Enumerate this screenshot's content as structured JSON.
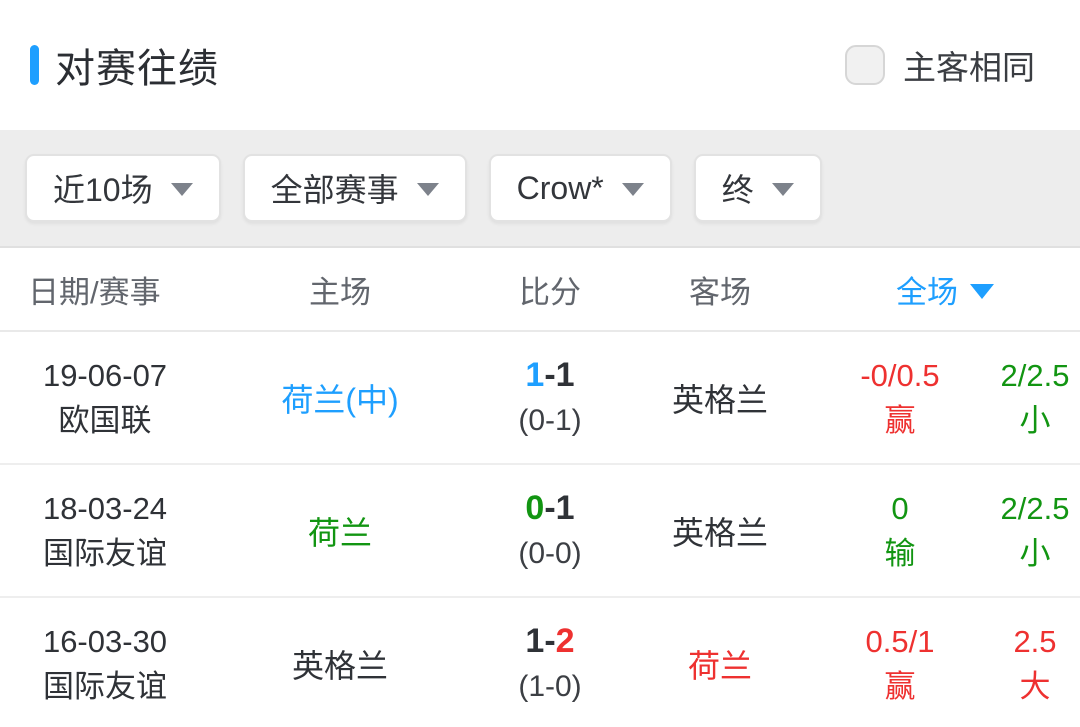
{
  "colors": {
    "accent_blue": "#1e9fff",
    "win_red": "#ee3130",
    "loss_green": "#129512",
    "text_dark": "#2f3237"
  },
  "header": {
    "title": "对赛往绩",
    "same_home_away_label": "主客相同",
    "checkbox_checked": false
  },
  "filters": [
    {
      "label": "近10场"
    },
    {
      "label": "全部赛事"
    },
    {
      "label": "Crow*"
    },
    {
      "label": "终"
    }
  ],
  "columns": {
    "date": "日期/赛事",
    "home": "主场",
    "score": "比分",
    "away": "客场",
    "full": "全场"
  },
  "score_separator": "-",
  "rows": [
    {
      "date": "19-06-07",
      "competition": "欧国联",
      "home": "荷兰(中)",
      "home_color": "#1e9fff",
      "score_home": "1",
      "score_home_color": "#1e9fff",
      "score_away": "1",
      "score_away_color": "#2f3237",
      "half_score": "(0-1)",
      "away": "英格兰",
      "away_color": "#2f3237",
      "handicap": "-0/0.5",
      "handicap_result": "赢",
      "handicap_color": "#ee3130",
      "over_under": "2/2.5",
      "over_under_result": "小",
      "over_under_color": "#129512"
    },
    {
      "date": "18-03-24",
      "competition": "国际友谊",
      "home": "荷兰",
      "home_color": "#129512",
      "score_home": "0",
      "score_home_color": "#129512",
      "score_away": "1",
      "score_away_color": "#2f3237",
      "half_score": "(0-0)",
      "away": "英格兰",
      "away_color": "#2f3237",
      "handicap": "0",
      "handicap_result": "输",
      "handicap_color": "#129512",
      "over_under": "2/2.5",
      "over_under_result": "小",
      "over_under_color": "#129512"
    },
    {
      "date": "16-03-30",
      "competition": "国际友谊",
      "home": "英格兰",
      "home_color": "#2f3237",
      "score_home": "1",
      "score_home_color": "#2f3237",
      "score_away": "2",
      "score_away_color": "#ee3130",
      "half_score": "(1-0)",
      "away": "荷兰",
      "away_color": "#ee3130",
      "handicap": "0.5/1",
      "handicap_result": "赢",
      "handicap_color": "#ee3130",
      "over_under": "2.5",
      "over_under_result": "大",
      "over_under_color": "#ee3130"
    }
  ]
}
